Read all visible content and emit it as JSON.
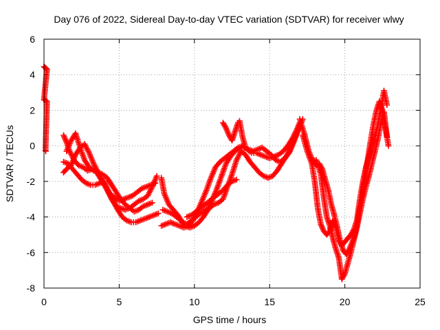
{
  "chart_data": {
    "type": "scatter",
    "title": "Day 076 of 2022, Sidereal Day-to-day VTEC variation (SDTVAR) for receiver wlwy",
    "xlabel": "GPS time / hours",
    "ylabel": "SDTVAR / TECUs",
    "xlim": [
      0,
      25
    ],
    "ylim": [
      -8,
      6
    ],
    "xticks": [
      0,
      5,
      10,
      15,
      20,
      25
    ],
    "yticks": [
      -8,
      -6,
      -4,
      -2,
      0,
      2,
      4,
      6
    ],
    "grid": true,
    "marker": "plus",
    "color": "#ff0000",
    "series": [
      {
        "x": [
          0.0,
          0.05,
          0.1,
          0.15,
          0.2,
          0.0,
          0.05,
          0.1,
          0.15,
          0.2,
          0.1,
          0.12
        ],
        "y": [
          4.45,
          4.42,
          4.38,
          4.35,
          4.3,
          2.6,
          2.58,
          2.55,
          2.52,
          2.5,
          -0.25,
          -0.3
        ]
      },
      {
        "x": [
          1.3,
          1.5,
          1.7,
          2.0,
          2.3,
          2.6,
          2.9,
          3.2,
          3.5,
          3.8,
          4.1,
          4.4,
          4.7,
          5.0,
          5.3,
          5.6,
          5.9,
          6.2,
          6.5,
          6.8,
          7.1,
          7.4
        ],
        "y": [
          0.6,
          0.2,
          -0.3,
          -0.8,
          -1.1,
          -1.2,
          -1.4,
          -1.3,
          -1.5,
          -1.9,
          -2.3,
          -2.7,
          -2.9,
          -3.1,
          -3.0,
          -2.9,
          -2.8,
          -2.6,
          -2.4,
          -2.3,
          -2.2,
          -2.1
        ]
      },
      {
        "x": [
          1.3,
          1.5,
          1.8,
          2.1,
          2.4,
          2.7,
          3.0,
          3.3,
          3.6,
          3.9,
          4.2,
          4.5,
          4.8,
          5.1,
          5.4,
          5.7,
          6.0,
          6.3,
          6.6,
          6.9,
          7.2,
          7.5
        ],
        "y": [
          -1.5,
          -1.3,
          -1.1,
          -0.5,
          -0.1,
          0.1,
          -0.4,
          -1.0,
          -1.5,
          -2.0,
          -2.5,
          -3.0,
          -3.4,
          -3.5,
          -3.6,
          -3.5,
          -3.3,
          -3.1,
          -3.0,
          -2.8,
          -2.3,
          -1.7
        ]
      },
      {
        "x": [
          1.3,
          1.6,
          1.9,
          2.2,
          2.5,
          2.8,
          3.1,
          3.4,
          3.7,
          4.0,
          4.3,
          4.6,
          4.9,
          5.2,
          5.5,
          5.8,
          6.1,
          6.4,
          6.7,
          7.0,
          7.3,
          7.6
        ],
        "y": [
          -0.9,
          -1.0,
          -1.3,
          -1.6,
          -1.9,
          -2.1,
          -2.2,
          -2.2,
          -2.1,
          -2.0,
          -2.6,
          -3.1,
          -3.6,
          -4.0,
          -4.2,
          -4.3,
          -4.3,
          -4.2,
          -4.1,
          -4.0,
          -3.9,
          -3.8
        ]
      },
      {
        "x": [
          1.5,
          1.8,
          2.1,
          2.4,
          2.7,
          3.0,
          3.3,
          3.6,
          3.9,
          4.2,
          4.5,
          4.8,
          5.1,
          5.4,
          5.7,
          6.0,
          6.3,
          6.6,
          6.9,
          7.2
        ],
        "y": [
          -0.3,
          0.3,
          0.7,
          -0.1,
          -0.8,
          -1.2,
          -1.4,
          -1.5,
          -1.6,
          -1.8,
          -2.2,
          -2.6,
          -3.0,
          -3.3,
          -3.5,
          -3.7,
          -3.6,
          -3.4,
          -3.3,
          -3.2
        ]
      },
      {
        "x": [
          7.8,
          8.1,
          8.4,
          8.7,
          9.0,
          9.3,
          9.6,
          9.9,
          10.2,
          10.5,
          10.8,
          11.1,
          11.4,
          11.7,
          12.0,
          12.3,
          12.6,
          12.9,
          13.2,
          13.5,
          13.8,
          14.1,
          14.4,
          14.7,
          15.0,
          15.3,
          15.6,
          15.9,
          16.2,
          16.5,
          16.8,
          17.0
        ],
        "y": [
          -4.5,
          -4.4,
          -4.3,
          -4.4,
          -4.5,
          -4.6,
          -4.5,
          -4.2,
          -3.7,
          -3.1,
          -2.5,
          -1.8,
          -1.2,
          -0.9,
          -0.7,
          -0.5,
          -0.3,
          -0.1,
          0.0,
          -0.2,
          -0.4,
          -0.4,
          -0.5,
          -0.6,
          -0.7,
          -0.6,
          -0.5,
          -0.3,
          0.0,
          0.4,
          0.9,
          1.3
        ]
      },
      {
        "x": [
          7.8,
          8.0,
          8.3,
          8.6,
          8.9,
          9.2,
          9.5,
          9.8,
          10.1,
          10.4,
          10.7,
          11.0,
          11.3,
          11.6,
          11.9,
          12.2,
          12.5,
          12.8,
          13.1,
          13.4,
          13.7,
          14.0,
          14.3,
          14.6,
          14.9,
          15.2,
          15.5,
          15.8,
          16.1,
          16.4,
          16.7,
          17.0
        ],
        "y": [
          -1.8,
          -2.7,
          -3.3,
          -3.6,
          -3.9,
          -4.3,
          -4.4,
          -4.2,
          -4.0,
          -3.8,
          -3.6,
          -3.5,
          -3.3,
          -3.2,
          -3.0,
          -2.3,
          -1.6,
          -0.8,
          -0.3,
          -0.5,
          -0.9,
          -1.2,
          -1.5,
          -1.7,
          -1.8,
          -1.7,
          -1.4,
          -1.0,
          -0.6,
          -0.1,
          0.5,
          1.1
        ]
      },
      {
        "x": [
          7.9,
          8.2,
          8.5,
          8.8,
          9.1,
          9.4,
          9.7,
          10.0,
          10.3,
          10.6,
          10.9,
          11.2,
          11.5,
          11.8,
          12.1,
          12.4,
          12.7,
          13.0,
          13.3,
          13.6,
          13.9,
          14.2,
          14.5,
          14.8,
          15.1,
          15.4,
          15.7,
          16.0,
          16.3,
          16.6,
          16.9,
          17.2
        ],
        "y": [
          -3.6,
          -3.7,
          -3.8,
          -4.0,
          -4.2,
          -4.5,
          -4.6,
          -4.5,
          -4.3,
          -4.0,
          -3.6,
          -3.0,
          -2.4,
          -1.7,
          -1.0,
          -0.6,
          -0.3,
          -0.1,
          -0.1,
          -0.2,
          -0.3,
          -0.2,
          -0.1,
          -0.3,
          -0.5,
          -0.8,
          -0.9,
          -0.7,
          -0.4,
          0.2,
          0.9,
          1.5
        ]
      },
      {
        "x": [
          9.5,
          9.8,
          10.1,
          10.4,
          10.7,
          11.0,
          11.3,
          11.6,
          11.9,
          12.2,
          12.5,
          12.8
        ],
        "y": [
          -4.0,
          -3.9,
          -3.7,
          -3.5,
          -3.3,
          -3.1,
          -2.9,
          -2.7,
          -2.5,
          -2.2,
          -2.0,
          -1.9
        ]
      },
      {
        "x": [
          11.9,
          12.1,
          12.3,
          12.5,
          12.7,
          12.9,
          13.0,
          13.2,
          13.4
        ],
        "y": [
          1.3,
          1.0,
          0.6,
          0.3,
          0.8,
          1.3,
          1.4,
          0.5,
          -0.1
        ]
      },
      {
        "x": [
          17.0,
          17.3,
          17.6,
          17.9,
          18.1,
          18.3,
          18.5,
          18.7,
          18.9,
          19.1,
          19.3,
          19.5,
          19.7,
          19.9,
          20.1,
          20.3,
          20.5,
          20.7,
          20.9,
          21.1,
          21.3,
          21.5,
          21.7,
          21.9,
          22.1,
          22.3,
          22.5,
          22.7,
          22.9
        ],
        "y": [
          1.5,
          0.7,
          -0.3,
          -0.9,
          -1.1,
          -1.0,
          -1.3,
          -1.9,
          -2.5,
          -3.3,
          -3.9,
          -4.6,
          -5.4,
          -5.9,
          -6.1,
          -5.8,
          -5.4,
          -4.9,
          -4.0,
          -3.0,
          -1.9,
          -0.9,
          0.2,
          1.2,
          2.0,
          2.5,
          2.0,
          1.0,
          0.0
        ]
      },
      {
        "x": [
          17.2,
          17.5,
          17.8,
          18.0,
          18.2,
          18.4,
          18.6,
          18.8,
          19.0,
          19.2,
          19.4,
          19.6,
          19.8,
          20.0,
          20.2,
          20.4,
          20.6,
          20.8,
          21.0,
          21.2,
          21.4,
          21.6,
          21.8,
          22.0,
          22.2,
          22.4,
          22.6,
          22.8
        ],
        "y": [
          0.6,
          -0.3,
          -1.0,
          -2.0,
          -3.5,
          -4.4,
          -4.8,
          -5.0,
          -4.8,
          -4.2,
          -4.6,
          -5.3,
          -5.6,
          -5.4,
          -5.2,
          -5.0,
          -4.7,
          -4.2,
          -3.0,
          -2.0,
          -1.2,
          -0.6,
          0.0,
          0.5,
          1.2,
          2.1,
          3.1,
          2.3
        ]
      },
      {
        "x": [
          17.8,
          18.1,
          18.4,
          18.6,
          18.8,
          19.0,
          19.2,
          19.4,
          19.6,
          19.8,
          20.0,
          20.2,
          20.4,
          20.6,
          20.8,
          21.0,
          21.2,
          21.4,
          21.6,
          21.8,
          22.0,
          22.2,
          22.4,
          22.6,
          22.8
        ],
        "y": [
          -0.9,
          -0.8,
          -1.6,
          -2.9,
          -4.0,
          -4.5,
          -5.2,
          -5.8,
          -6.3,
          -7.5,
          -7.2,
          -6.6,
          -6.0,
          -5.3,
          -4.6,
          -3.8,
          -3.0,
          -2.3,
          -1.7,
          -1.0,
          -0.3,
          0.4,
          1.3,
          1.9,
          0.5
        ]
      }
    ]
  }
}
